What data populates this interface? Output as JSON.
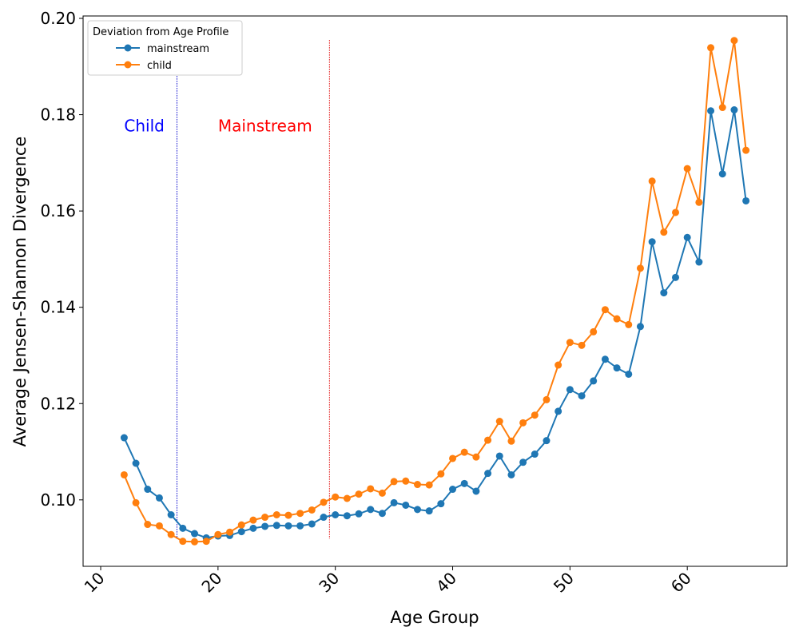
{
  "chart_data": {
    "type": "line",
    "xlabel": "Age Group",
    "ylabel": "Average Jensen-Shannon Divergence",
    "xlim": [
      8.5,
      68.5
    ],
    "ylim": [
      0.0862,
      0.2005
    ],
    "xticks": [
      10,
      20,
      30,
      40,
      50,
      60
    ],
    "yticks": [
      0.1,
      0.12,
      0.14,
      0.16,
      0.18,
      0.2
    ],
    "xtick_rotation": 45,
    "grid": false,
    "legend": {
      "title": "Deviation from Age Profile",
      "placement": "upper-left"
    },
    "x": [
      12,
      13,
      14,
      15,
      16,
      17,
      18,
      19,
      20,
      21,
      22,
      23,
      24,
      25,
      26,
      27,
      28,
      29,
      30,
      31,
      32,
      33,
      34,
      35,
      36,
      37,
      38,
      39,
      40,
      41,
      42,
      43,
      44,
      45,
      46,
      47,
      48,
      49,
      50,
      51,
      52,
      53,
      54,
      55,
      56,
      57,
      58,
      59,
      60,
      61,
      62,
      63,
      64,
      65
    ],
    "series": [
      {
        "name": "mainstream",
        "color": "#1f77b4",
        "values": [
          0.1129,
          0.1076,
          0.1022,
          0.1004,
          0.0969,
          0.0941,
          0.093,
          0.0921,
          0.0925,
          0.0926,
          0.0934,
          0.0941,
          0.0945,
          0.0947,
          0.0946,
          0.0946,
          0.095,
          0.0964,
          0.0969,
          0.0967,
          0.0971,
          0.098,
          0.0972,
          0.0994,
          0.0989,
          0.098,
          0.0977,
          0.0992,
          0.1022,
          0.1034,
          0.1018,
          0.1055,
          0.1091,
          0.1052,
          0.1078,
          0.1095,
          0.1123,
          0.1184,
          0.1229,
          0.1216,
          0.1247,
          0.1292,
          0.1274,
          0.1261,
          0.136,
          0.1536,
          0.143,
          0.1462,
          0.1545,
          0.1494,
          0.1808,
          0.1677,
          0.181,
          0.1621
        ]
      },
      {
        "name": "child",
        "color": "#ff7f0e",
        "values": [
          0.1052,
          0.0994,
          0.0949,
          0.0946,
          0.0928,
          0.0914,
          0.0913,
          0.0914,
          0.0928,
          0.0933,
          0.0948,
          0.0958,
          0.0964,
          0.0969,
          0.0968,
          0.0972,
          0.0979,
          0.0995,
          0.1006,
          0.1003,
          0.1012,
          0.1023,
          0.1014,
          0.1038,
          0.1039,
          0.1032,
          0.1031,
          0.1054,
          0.1086,
          0.1099,
          0.1089,
          0.1124,
          0.1163,
          0.1122,
          0.116,
          0.1176,
          0.1208,
          0.128,
          0.1327,
          0.1321,
          0.1349,
          0.1395,
          0.1376,
          0.1364,
          0.1481,
          0.1662,
          0.1556,
          0.1597,
          0.1688,
          0.1618,
          0.1939,
          0.1815,
          0.1954,
          0.1726
        ]
      }
    ],
    "reference_lines": [
      {
        "x": 16.5,
        "color": "#0000cc"
      },
      {
        "x": 29.5,
        "color": "#e00000"
      }
    ],
    "annotations": [
      {
        "text": "Child",
        "x": 12,
        "y": 0.1765,
        "color": "#0000ff"
      },
      {
        "text": "Mainstream",
        "x": 20,
        "y": 0.1765,
        "color": "#ff0000"
      }
    ]
  }
}
